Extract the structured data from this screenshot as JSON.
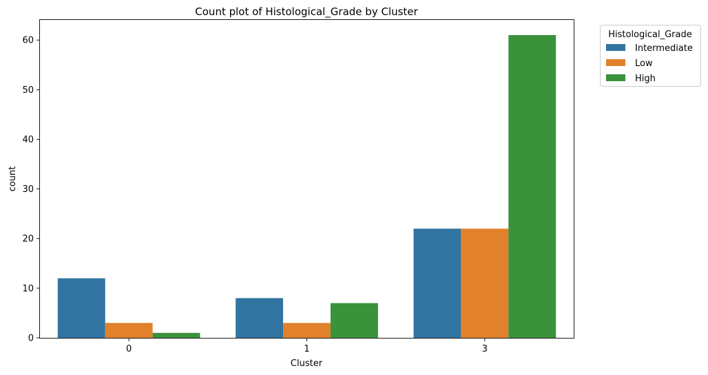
{
  "chart_data": {
    "type": "bar",
    "title": "Count plot of Histological_Grade by Cluster",
    "xlabel": "Cluster",
    "ylabel": "count",
    "categories": [
      "0",
      "1",
      "3"
    ],
    "series": [
      {
        "name": "Intermediate",
        "values": [
          12,
          8,
          22
        ],
        "color": "#3274a1"
      },
      {
        "name": "Low",
        "values": [
          3,
          3,
          22
        ],
        "color": "#e1812c"
      },
      {
        "name": "High",
        "values": [
          1,
          7,
          61
        ],
        "color": "#3a923a"
      }
    ],
    "ylim": [
      0,
      64.05
    ],
    "yticks": [
      0,
      10,
      20,
      30,
      40,
      50,
      60
    ],
    "legend": {
      "title": "Histological_Grade",
      "placement": "outside-upper-right"
    },
    "grid": false
  }
}
